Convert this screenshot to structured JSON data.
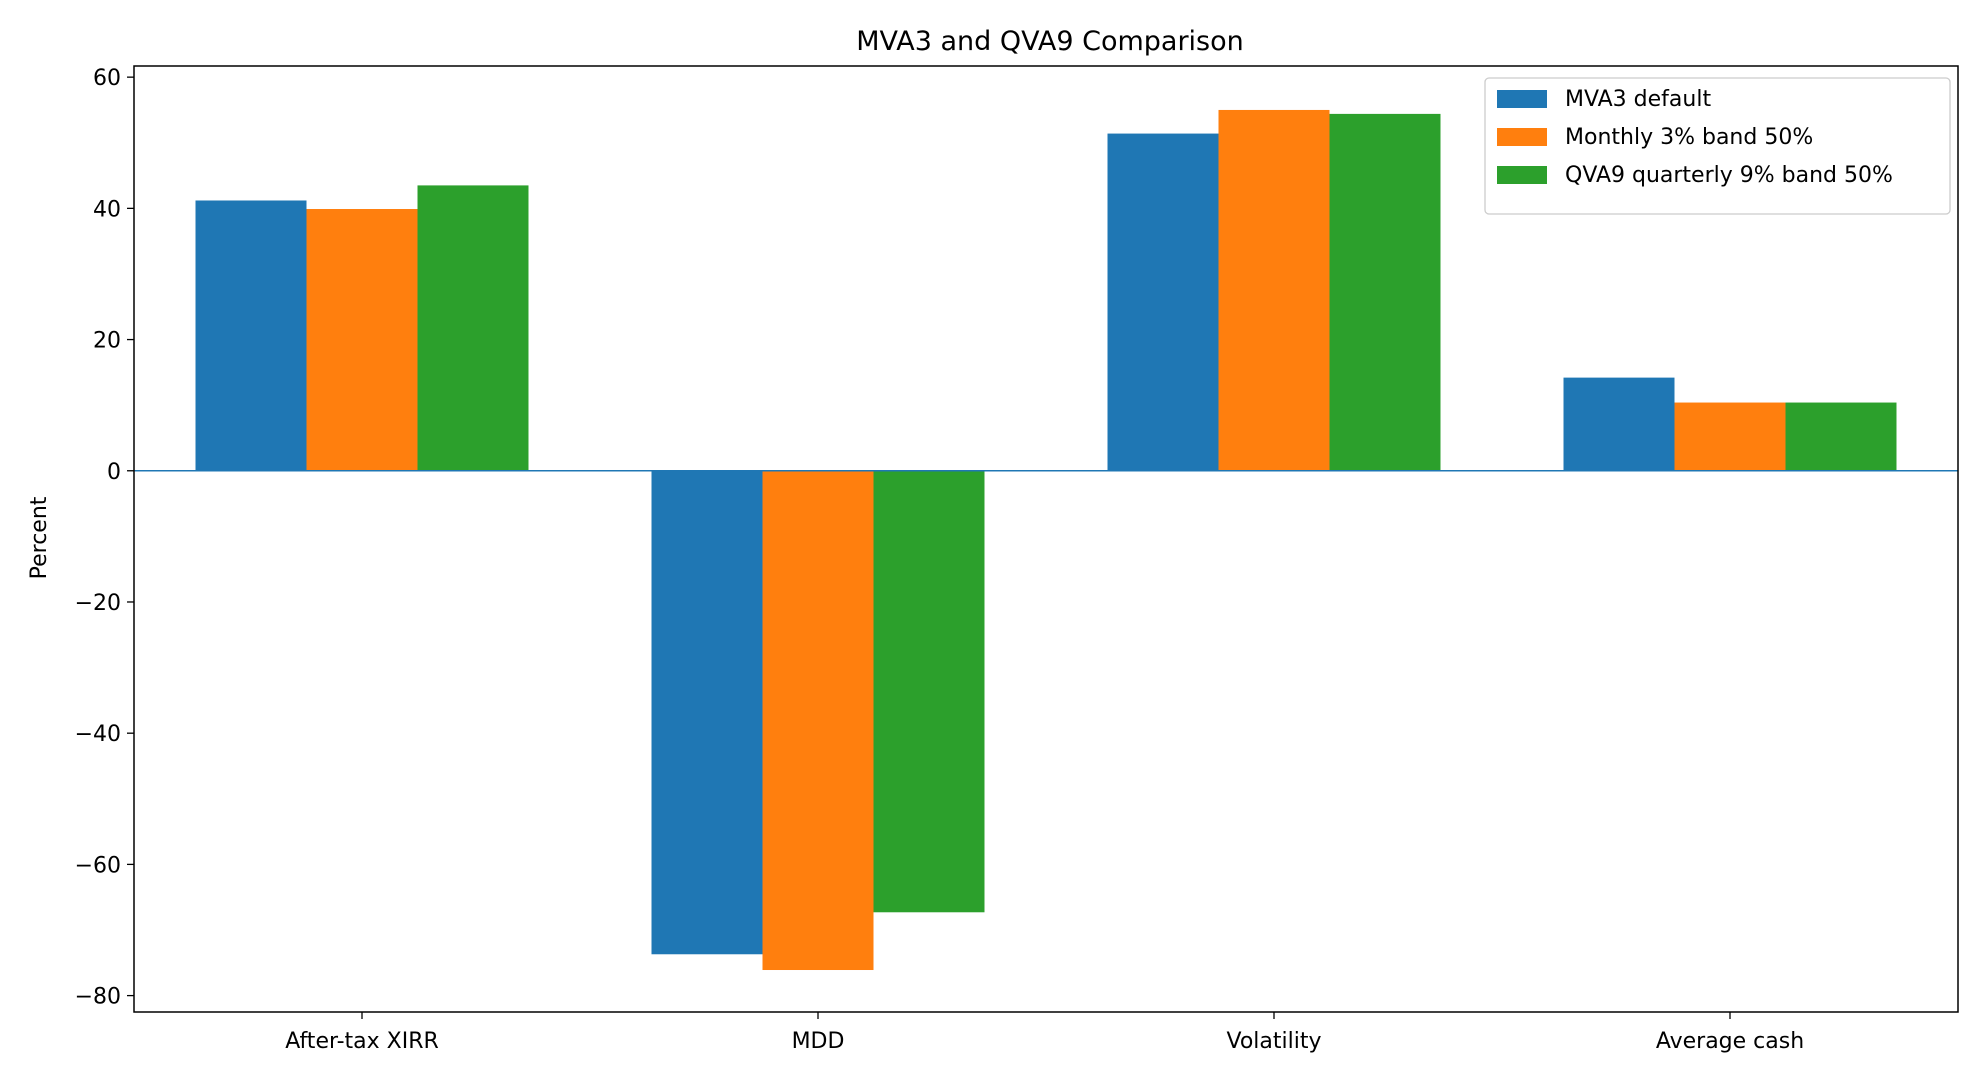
{
  "chart_data": {
    "type": "bar",
    "title": "MVA3 and QVA9 Comparison",
    "xlabel": "",
    "ylabel": "Percent",
    "categories": [
      "After-tax XIRR",
      "MDD",
      "Volatility",
      "Average cash"
    ],
    "series": [
      {
        "name": "MVA3 default",
        "values": [
          41.2,
          -73.7,
          51.4,
          14.2
        ],
        "color": "#1f77b4"
      },
      {
        "name": "Monthly 3% band 50%",
        "values": [
          39.9,
          -76.1,
          55.0,
          10.4
        ],
        "color": "#ff7f0e"
      },
      {
        "name": "QVA9 quarterly 9% band 50%",
        "values": [
          43.5,
          -67.3,
          54.4,
          10.4
        ],
        "color": "#2ca02c"
      }
    ],
    "ylim": [
      -82.5,
      61.7
    ],
    "yticks": [
      60,
      40,
      20,
      0,
      -20,
      -40,
      -60,
      -80
    ],
    "ytick_labels": [
      "60",
      "40",
      "20",
      "0",
      "−20",
      "−40",
      "−60",
      "−80"
    ],
    "zero_line_color": "#1f77b4",
    "grid": false,
    "legend_position": "top-right"
  }
}
